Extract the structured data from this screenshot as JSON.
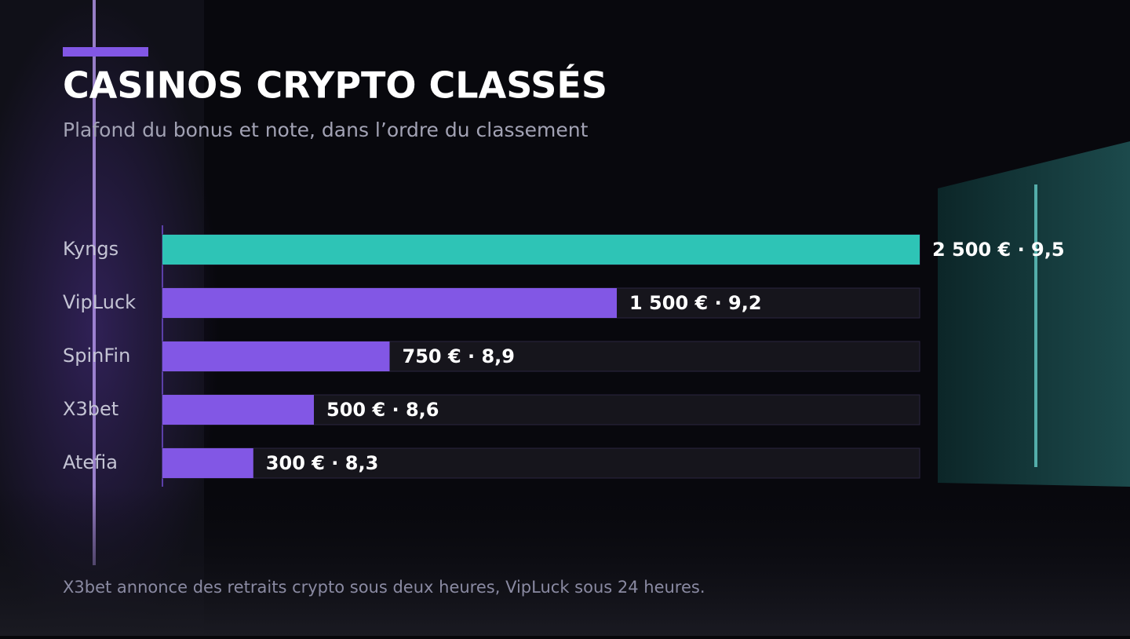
{
  "chart_data": {
    "type": "hbar",
    "title": "CASINOS CRYPTO CLASSÉS",
    "subtitle": "Plafond du bonus et note, dans l’ordre du classement",
    "categories": [
      "Kyngs",
      "VipLuck",
      "SpinFin",
      "X3bet",
      "Atefia"
    ],
    "values": [
      2500,
      1500,
      750,
      500,
      300
    ],
    "value_labels": [
      "2 500 €",
      "1 500 €",
      "750 €",
      "500 €",
      "300 €"
    ],
    "label_separator": " · ",
    "ratings": [
      9.5,
      9.2,
      8.9,
      8.6,
      8.3
    ],
    "rating_labels": [
      "9,5",
      "9,2",
      "8,9",
      "8,6",
      "8,3"
    ],
    "colors": [
      "#2ec4b6",
      "#8257e5",
      "#8257e5",
      "#8257e5",
      "#8257e5"
    ],
    "xlim": [
      0,
      2500
    ],
    "note": "X3bet annonce des retraits crypto sous deux heures, VipLuck sous 24 heures."
  }
}
